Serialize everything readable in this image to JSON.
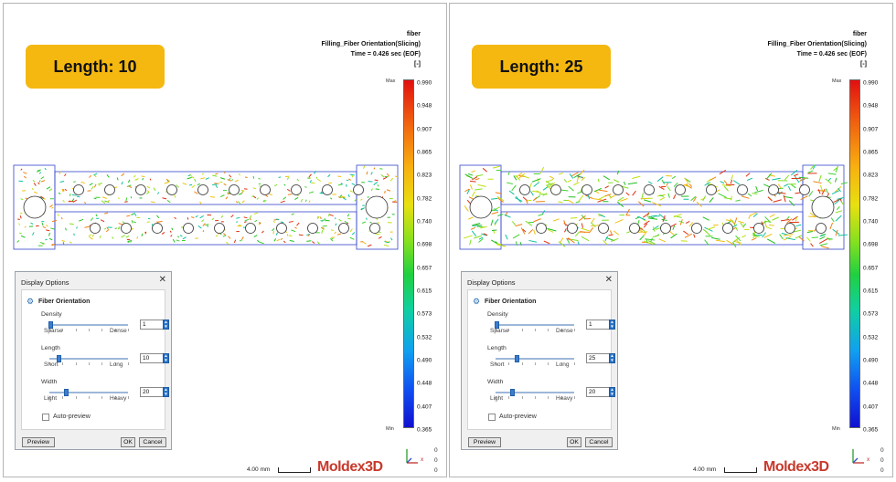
{
  "panels": [
    {
      "badge": "Length: 10",
      "header": {
        "line1": "fiber",
        "line2": "Filling_Fiber Orientation(Slicing)",
        "line3": "Time = 0.426 sec (EOF)",
        "unit": "[-]"
      },
      "legend": {
        "max_label": "Max",
        "min_label": "Min",
        "ticks": [
          "0.990",
          "0.948",
          "0.907",
          "0.865",
          "0.823",
          "0.782",
          "0.740",
          "0.698",
          "0.657",
          "0.615",
          "0.573",
          "0.532",
          "0.490",
          "0.448",
          "0.407",
          "0.365"
        ]
      },
      "dialog": {
        "title": "Display Options",
        "close": "✕",
        "heading": "Fiber Orientation",
        "density": {
          "label": "Density",
          "min": "Sparse",
          "max": "Dense",
          "value": "1",
          "fraction": 0.0
        },
        "length": {
          "label": "Length",
          "min": "Short",
          "max": "Long",
          "value": "10",
          "fraction": 0.1
        },
        "width": {
          "label": "Width",
          "min": "Light",
          "max": "Heavy",
          "value": "20",
          "fraction": 0.2
        },
        "auto_preview": "Auto-preview",
        "preview_btn": "Preview",
        "ok_btn": "OK",
        "cancel_btn": "Cancel"
      },
      "scale": "4.00 mm",
      "logo": "Moldex3D",
      "axes": {
        "x": "x",
        "y": "y",
        "z": "z",
        "v1": "0",
        "v2": "0",
        "v3": "0"
      }
    },
    {
      "badge": "Length: 25",
      "header": {
        "line1": "fiber",
        "line2": "Filling_Fiber Orientation(Slicing)",
        "line3": "Time = 0.426 sec (EOF)",
        "unit": "[-]"
      },
      "legend": {
        "max_label": "Max",
        "min_label": "Min",
        "ticks": [
          "0.990",
          "0.948",
          "0.907",
          "0.865",
          "0.823",
          "0.782",
          "0.740",
          "0.698",
          "0.657",
          "0.615",
          "0.573",
          "0.532",
          "0.490",
          "0.448",
          "0.407",
          "0.365"
        ]
      },
      "dialog": {
        "title": "Display Options",
        "close": "✕",
        "heading": "Fiber Orientation",
        "density": {
          "label": "Density",
          "min": "Sparse",
          "max": "Dense",
          "value": "1",
          "fraction": 0.0
        },
        "length": {
          "label": "Length",
          "min": "Short",
          "max": "Long",
          "value": "25",
          "fraction": 0.25
        },
        "width": {
          "label": "Width",
          "min": "Light",
          "max": "Heavy",
          "value": "20",
          "fraction": 0.2
        },
        "auto_preview": "Auto-preview",
        "preview_btn": "Preview",
        "ok_btn": "OK",
        "cancel_btn": "Cancel"
      },
      "scale": "4.00 mm",
      "logo": "Moldex3D",
      "axes": {
        "x": "x",
        "y": "y",
        "z": "z",
        "v1": "0",
        "v2": "0",
        "v3": "0"
      }
    }
  ],
  "colors": {
    "badge": "#f5b810",
    "logo": "#c8392c",
    "outline": "#3344cc",
    "slider_thumb": "#3d7dcc"
  }
}
